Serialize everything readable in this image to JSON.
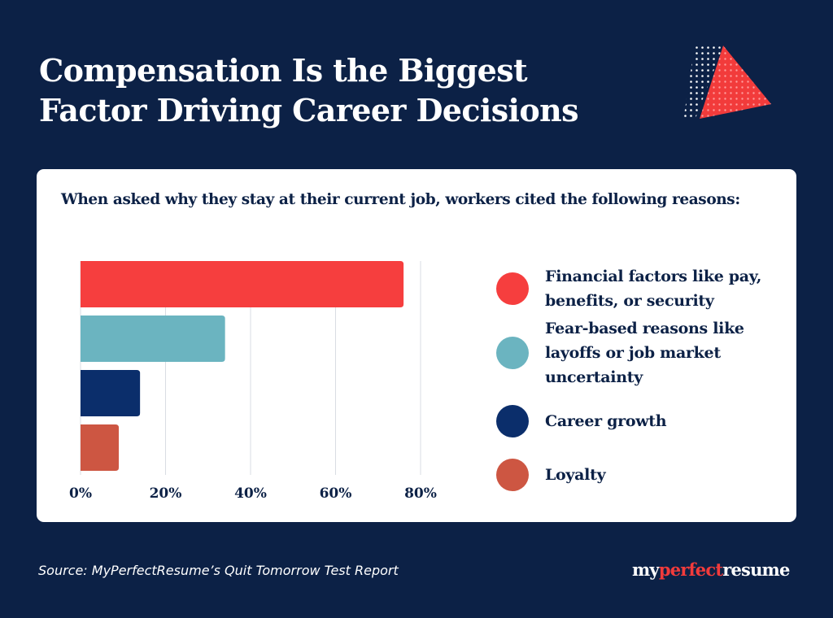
{
  "title": {
    "line1": "Compensation Is the Biggest",
    "line2": "Factor Driving Career Decisions"
  },
  "subtitle": "When asked why they stay at their current job, workers cited the following reasons:",
  "source": "Source: MyPerfectResume’s Quit Tomorrow Test Report",
  "brand": {
    "part1": "my",
    "part2": "perfect",
    "part3": "resume"
  },
  "colors": {
    "background": "#0c2146",
    "accent": "#f23b3b",
    "card": "#ffffff",
    "text_dark": "#0c2146"
  },
  "chart_data": {
    "type": "bar",
    "orientation": "horizontal",
    "categories": [
      "Financial factors like pay, benefits, or security",
      "Fear-based reasons like layoffs or job market uncertainty",
      "Career growth",
      "Loyalty"
    ],
    "values": [
      76,
      34,
      14,
      9
    ],
    "colors": [
      "#f63e3e",
      "#6bb4c0",
      "#0b2e6b",
      "#cd5642"
    ],
    "xlim": [
      0,
      80
    ],
    "xticks": [
      "0%",
      "20%",
      "40%",
      "60%",
      "80%"
    ],
    "grid": true,
    "legend_position": "right"
  }
}
